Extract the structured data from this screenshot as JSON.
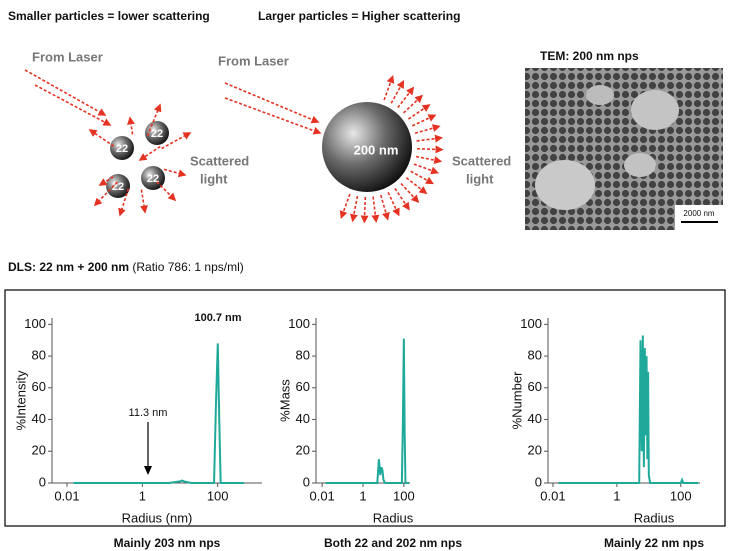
{
  "diagram": {
    "small": {
      "title": "Smaller particles = lower scattering",
      "laser": "From Laser",
      "particles": [
        "22",
        "22",
        "22",
        "22"
      ],
      "scattered": [
        "Scattered",
        "light"
      ]
    },
    "large": {
      "title": "Larger particles = Higher scattering",
      "laser": "From Laser",
      "particle": "200 nm",
      "scattered": [
        "Scattered",
        "light"
      ]
    },
    "tem": {
      "title": "TEM: 200 nm nps",
      "scale_bar": "2000 nm"
    }
  },
  "dls_title": {
    "bold": "DLS: 22 nm + 200 nm",
    "rest": "(Ratio 786: 1 nps/ml)"
  },
  "chart_data": [
    {
      "type": "line",
      "y_label": "%Intensity",
      "x_label": "Radius (nm)",
      "caption": "Mainly 203 nm nps",
      "log_x": true,
      "xlim": [
        0.004,
        1500
      ],
      "xticks": [
        0.01,
        1,
        100
      ],
      "ylim": [
        0,
        104
      ],
      "yticks": [
        0,
        20,
        40,
        60,
        80,
        100
      ],
      "annotations": [
        "100.7 nm",
        "11.3 nm"
      ],
      "series": [
        {
          "color": "#1fa99a",
          "x": [
            0.015,
            5,
            10,
            11.3,
            13,
            20,
            80,
            90,
            100.7,
            110,
            120,
            500
          ],
          "values": [
            0,
            0,
            1,
            1.5,
            1,
            0,
            0,
            50,
            88,
            40,
            0,
            0
          ]
        }
      ]
    },
    {
      "type": "line",
      "y_label": "%Mass",
      "x_label": "Radius",
      "caption": "Both 22 and 202 nm nps",
      "log_x": true,
      "xlim": [
        0.005,
        200
      ],
      "xticks": [
        0.01,
        1,
        100
      ],
      "ylim": [
        0,
        104
      ],
      "yticks": [
        0,
        20,
        40,
        60,
        80,
        100
      ],
      "series": [
        {
          "color": "#1fa99a",
          "x": [
            0.015,
            5,
            6,
            7,
            8,
            9,
            10,
            12,
            80,
            90,
            100,
            110,
            120,
            180
          ],
          "values": [
            0,
            0,
            15,
            5,
            10,
            8,
            2,
            0,
            0,
            40,
            91,
            30,
            0,
            0
          ]
        }
      ]
    },
    {
      "type": "line",
      "y_label": "%Number",
      "x_label": "Radius",
      "caption": "Mainly 22 nm nps",
      "log_x": true,
      "xlim": [
        0.007,
        400
      ],
      "xticks": [
        0.01,
        1,
        100
      ],
      "ylim": [
        0,
        104
      ],
      "yticks": [
        0,
        20,
        40,
        60,
        80,
        100
      ],
      "series": [
        {
          "color": "#1fa99a",
          "x": [
            0.015,
            5,
            5.5,
            6,
            6.5,
            7,
            7.5,
            8,
            8.5,
            9,
            9.5,
            10,
            11,
            100,
            110,
            120,
            350
          ],
          "values": [
            0,
            0,
            90,
            20,
            93,
            10,
            85,
            30,
            80,
            15,
            70,
            5,
            0,
            0,
            2,
            0,
            0
          ]
        }
      ]
    }
  ]
}
